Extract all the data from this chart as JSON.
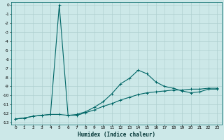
{
  "xlabel": "Humidex (Indice chaleur)",
  "bg_color": "#cce8e8",
  "grid_color": "#aacccc",
  "line_color": "#006666",
  "xlim": [
    -0.5,
    23.5
  ],
  "ylim": [
    -13.2,
    0.3
  ],
  "xticks": [
    0,
    1,
    2,
    3,
    4,
    5,
    6,
    7,
    8,
    9,
    10,
    11,
    12,
    13,
    14,
    15,
    16,
    17,
    18,
    19,
    20,
    21,
    22,
    23
  ],
  "yticks": [
    0,
    -1,
    -2,
    -3,
    -4,
    -5,
    -6,
    -7,
    -8,
    -9,
    -10,
    -11,
    -12,
    -13
  ],
  "curve1_x": [
    0,
    1,
    2,
    3,
    4,
    5,
    6,
    7,
    8,
    9,
    10,
    11,
    12,
    13,
    14,
    15,
    16,
    17,
    18,
    19,
    20,
    21,
    22,
    23
  ],
  "curve1_y": [
    -12.6,
    -12.5,
    -12.3,
    -12.2,
    -12.1,
    0.0,
    -12.2,
    -12.2,
    -11.9,
    -11.6,
    -11.2,
    -10.9,
    -10.5,
    -10.2,
    -9.9,
    -9.7,
    -9.6,
    -9.5,
    -9.4,
    -9.4,
    -9.3,
    -9.3,
    -9.2,
    -9.2
  ],
  "curve2_x": [
    0,
    1,
    2,
    3,
    4,
    5,
    6,
    7,
    8,
    9,
    10,
    11,
    12,
    13,
    14,
    15,
    16,
    17,
    18,
    19,
    20,
    21,
    22,
    23
  ],
  "curve2_y": [
    -12.6,
    -12.5,
    -12.3,
    -12.2,
    -12.1,
    -12.1,
    -12.2,
    -12.1,
    -11.8,
    -11.3,
    -10.7,
    -9.8,
    -8.7,
    -8.1,
    -7.2,
    -7.6,
    -8.5,
    -9.0,
    -9.2,
    -9.5,
    -9.7,
    -9.6,
    -9.3,
    -9.3
  ],
  "xlabel_fontsize": 5.5,
  "tick_fontsize": 4.2,
  "linewidth": 0.8,
  "markersize": 2.5
}
